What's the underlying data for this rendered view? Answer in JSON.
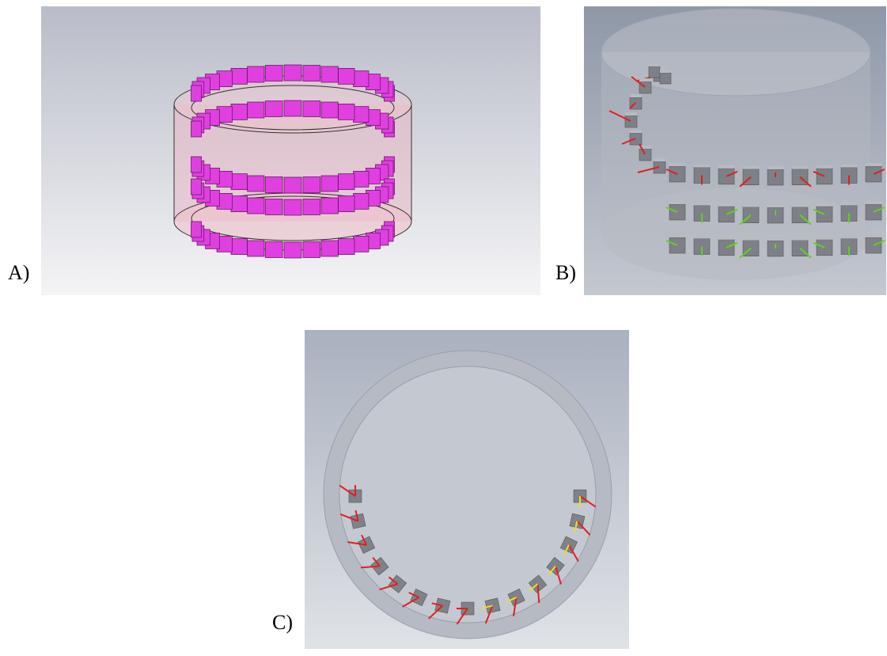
{
  "panels": [
    {
      "label": "A)"
    },
    {
      "label": "B)"
    },
    {
      "label": "C)"
    }
  ]
}
